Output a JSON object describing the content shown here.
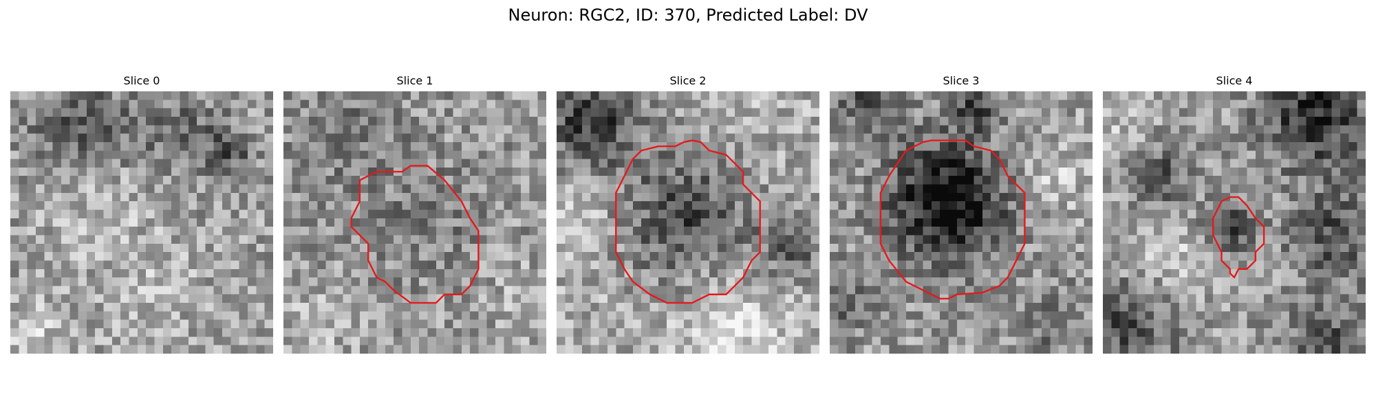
{
  "figure": {
    "title": "Neuron: RGC2, ID: 370, Predicted Label: DV",
    "contour_color": "#e41a1c",
    "colormap": "gray"
  },
  "panels": [
    {
      "title": "Slice 0",
      "has_contour": false
    },
    {
      "title": "Slice 1",
      "has_contour": true
    },
    {
      "title": "Slice 2",
      "has_contour": true
    },
    {
      "title": "Slice 3",
      "has_contour": true
    },
    {
      "title": "Slice 4",
      "has_contour": true
    }
  ]
}
